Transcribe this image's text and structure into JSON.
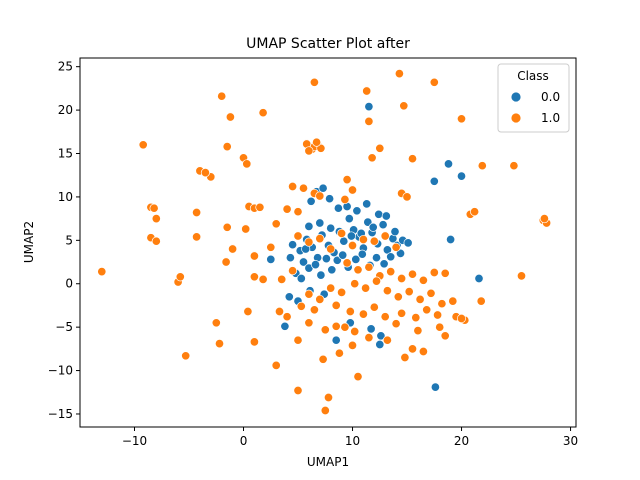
{
  "chart_data": {
    "type": "scatter",
    "title": "UMAP Scatter Plot after",
    "xlabel": "UMAP1",
    "ylabel": "UMAP2",
    "xlim": [
      -15,
      30.5
    ],
    "ylim": [
      -16.5,
      26
    ],
    "xticks": [
      -10,
      0,
      10,
      20,
      30
    ],
    "yticks": [
      -15,
      -10,
      -5,
      0,
      5,
      10,
      15,
      20,
      25
    ],
    "xtick_labels": [
      "−10",
      "0",
      "10",
      "20",
      "30"
    ],
    "ytick_labels": [
      "−15",
      "−10",
      "−5",
      "0",
      "5",
      "10",
      "15",
      "20",
      "25"
    ],
    "grid": false,
    "legend": {
      "title": "Class",
      "placement": "upper-right",
      "entries": [
        {
          "label": "0.0",
          "color": "#1f77b4"
        },
        {
          "label": "1.0",
          "color": "#ff7f0e"
        }
      ]
    },
    "series": [
      {
        "name": "0.0",
        "color": "#1f77b4",
        "points": [
          [
            4.5,
            4.5
          ],
          [
            5.2,
            3.8
          ],
          [
            5.8,
            5.1
          ],
          [
            6.3,
            4.2
          ],
          [
            6.8,
            3.0
          ],
          [
            7.2,
            5.6
          ],
          [
            7.8,
            4.4
          ],
          [
            8.3,
            3.6
          ],
          [
            8.8,
            6.0
          ],
          [
            9.2,
            4.9
          ],
          [
            9.7,
            7.5
          ],
          [
            10.1,
            6.2
          ],
          [
            10.6,
            5.4
          ],
          [
            11.0,
            4.1
          ],
          [
            11.4,
            7.1
          ],
          [
            11.8,
            5.9
          ],
          [
            12.3,
            4.6
          ],
          [
            12.8,
            6.8
          ],
          [
            13.2,
            3.9
          ],
          [
            13.7,
            5.2
          ],
          [
            14.1,
            4.4
          ],
          [
            14.6,
            5.0
          ],
          [
            15.1,
            4.7
          ],
          [
            5.5,
            2.5
          ],
          [
            6.0,
            1.8
          ],
          [
            6.6,
            2.2
          ],
          [
            7.1,
            1.0
          ],
          [
            7.6,
            2.9
          ],
          [
            8.1,
            1.6
          ],
          [
            8.6,
            2.7
          ],
          [
            9.1,
            3.3
          ],
          [
            9.6,
            1.9
          ],
          [
            10.3,
            2.8
          ],
          [
            10.9,
            3.4
          ],
          [
            11.6,
            2.1
          ],
          [
            12.2,
            3.0
          ],
          [
            12.9,
            2.3
          ],
          [
            13.5,
            3.1
          ],
          [
            4.8,
            1.2
          ],
          [
            5.3,
            0.6
          ],
          [
            6.2,
            9.5
          ],
          [
            6.7,
            10.6
          ],
          [
            7.3,
            11.0
          ],
          [
            7.9,
            9.8
          ],
          [
            8.7,
            8.7
          ],
          [
            9.5,
            8.9
          ],
          [
            10.4,
            8.4
          ],
          [
            11.3,
            9.2
          ],
          [
            12.4,
            8.0
          ],
          [
            13.1,
            7.8
          ],
          [
            4.2,
            -1.5
          ],
          [
            5.0,
            -2.0
          ],
          [
            6.1,
            -0.8
          ],
          [
            7.4,
            -1.2
          ],
          [
            9.8,
            -4.5
          ],
          [
            11.7,
            -5.2
          ],
          [
            12.6,
            -6.0
          ],
          [
            12.5,
            -7.0
          ],
          [
            8.5,
            -6.5
          ],
          [
            11.5,
            20.4
          ],
          [
            17.5,
            11.8
          ],
          [
            20.0,
            12.4
          ],
          [
            18.8,
            13.8
          ],
          [
            19.0,
            5.1
          ],
          [
            21.6,
            0.6
          ],
          [
            17.6,
            -11.9
          ],
          [
            3.8,
            -4.9
          ],
          [
            2.5,
            2.8
          ],
          [
            6.0,
            6.6
          ],
          [
            7.0,
            7.0
          ],
          [
            8.0,
            6.4
          ],
          [
            9.9,
            5.5
          ],
          [
            10.8,
            5.8
          ],
          [
            11.9,
            6.5
          ],
          [
            13.9,
            6.0
          ],
          [
            14.4,
            3.5
          ],
          [
            5.7,
            4.0
          ],
          [
            4.3,
            3.0
          ]
        ]
      },
      {
        "name": "1.0",
        "color": "#ff7f0e",
        "points": [
          [
            5.0,
            5.5
          ],
          [
            6.0,
            4.8
          ],
          [
            7.0,
            5.2
          ],
          [
            8.0,
            4.0
          ],
          [
            9.0,
            5.8
          ],
          [
            10.0,
            4.4
          ],
          [
            11.0,
            5.1
          ],
          [
            12.0,
            4.9
          ],
          [
            13.0,
            5.5
          ],
          [
            14.0,
            4.2
          ],
          [
            9.5,
            2.4
          ],
          [
            10.5,
            1.6
          ],
          [
            11.5,
            1.9
          ],
          [
            12.5,
            0.9
          ],
          [
            13.5,
            1.4
          ],
          [
            14.5,
            0.6
          ],
          [
            15.5,
            1.1
          ],
          [
            16.5,
            0.4
          ],
          [
            17.5,
            1.3
          ],
          [
            18.5,
            1.2
          ],
          [
            10.2,
            0.0
          ],
          [
            11.2,
            -0.5
          ],
          [
            12.2,
            0.3
          ],
          [
            13.2,
            -0.8
          ],
          [
            14.2,
            -1.5
          ],
          [
            15.2,
            -0.9
          ],
          [
            16.2,
            -1.8
          ],
          [
            17.2,
            -1.1
          ],
          [
            18.2,
            -2.3
          ],
          [
            19.2,
            -2.0
          ],
          [
            9.0,
            -1.0
          ],
          [
            8.0,
            -0.5
          ],
          [
            7.0,
            -1.8
          ],
          [
            6.0,
            -1.2
          ],
          [
            5.3,
            -2.6
          ],
          [
            6.5,
            -3.0
          ],
          [
            8.5,
            -2.5
          ],
          [
            9.8,
            -3.2
          ],
          [
            11.0,
            -3.5
          ],
          [
            12.0,
            -2.7
          ],
          [
            13.0,
            -3.8
          ],
          [
            14.5,
            -3.4
          ],
          [
            15.8,
            -3.9
          ],
          [
            16.8,
            -3.0
          ],
          [
            17.8,
            -3.6
          ],
          [
            19.5,
            -3.8
          ],
          [
            20.3,
            -4.2
          ],
          [
            18.0,
            -5.0
          ],
          [
            16.0,
            -5.4
          ],
          [
            14.0,
            -4.6
          ],
          [
            6.0,
            -4.5
          ],
          [
            7.5,
            -5.3
          ],
          [
            8.5,
            -4.9
          ],
          [
            9.3,
            -5.0
          ],
          [
            10.2,
            -5.5
          ],
          [
            11.5,
            -6.2
          ],
          [
            13.2,
            -6.5
          ],
          [
            5.0,
            -6.5
          ],
          [
            3.3,
            -3.2
          ],
          [
            4.0,
            -3.8
          ],
          [
            6.3,
            15.5
          ],
          [
            6.8,
            16.0
          ],
          [
            5.8,
            16.1
          ],
          [
            6.5,
            15.8
          ],
          [
            7.1,
            15.6
          ],
          [
            6.0,
            15.3
          ],
          [
            6.7,
            16.3
          ],
          [
            14.3,
            24.2
          ],
          [
            17.5,
            23.2
          ],
          [
            6.5,
            23.2
          ],
          [
            11.3,
            22.2
          ],
          [
            -2.0,
            21.6
          ],
          [
            1.8,
            19.7
          ],
          [
            11.5,
            18.7
          ],
          [
            14.7,
            20.5
          ],
          [
            20.0,
            19.0
          ],
          [
            -1.2,
            19.2
          ],
          [
            -9.2,
            16.0
          ],
          [
            -1.5,
            15.8
          ],
          [
            0.0,
            14.5
          ],
          [
            0.3,
            13.8
          ],
          [
            -3.0,
            12.3
          ],
          [
            -4.0,
            13.0
          ],
          [
            -3.5,
            12.8
          ],
          [
            11.8,
            14.5
          ],
          [
            15.5,
            14.4
          ],
          [
            9.5,
            12.0
          ],
          [
            12.5,
            15.6
          ],
          [
            4.5,
            11.2
          ],
          [
            5.5,
            11.0
          ],
          [
            6.5,
            10.4
          ],
          [
            7.0,
            10.1
          ],
          [
            9.3,
            9.7
          ],
          [
            14.5,
            10.4
          ],
          [
            15.0,
            10.0
          ],
          [
            10.0,
            10.8
          ],
          [
            20.8,
            8.0
          ],
          [
            21.2,
            8.3
          ],
          [
            -8.5,
            8.8
          ],
          [
            -8.2,
            8.7
          ],
          [
            -8.0,
            7.5
          ],
          [
            -8.5,
            5.3
          ],
          [
            -8.0,
            4.9
          ],
          [
            -4.3,
            8.2
          ],
          [
            -4.3,
            5.4
          ],
          [
            -1.5,
            6.5
          ],
          [
            0.5,
            8.9
          ],
          [
            1.0,
            8.7
          ],
          [
            1.5,
            8.8
          ],
          [
            0.2,
            6.3
          ],
          [
            -1.0,
            4.0
          ],
          [
            -1.6,
            2.5
          ],
          [
            1.0,
            3.2
          ],
          [
            2.5,
            4.2
          ],
          [
            3.0,
            6.9
          ],
          [
            4.0,
            8.6
          ],
          [
            5.0,
            8.3
          ],
          [
            27.5,
            7.3
          ],
          [
            27.8,
            7.0
          ],
          [
            27.6,
            7.5
          ],
          [
            24.8,
            13.6
          ],
          [
            21.9,
            13.6
          ],
          [
            -13.0,
            1.4
          ],
          [
            -6.0,
            0.2
          ],
          [
            -5.8,
            0.8
          ],
          [
            1.0,
            0.8
          ],
          [
            1.8,
            0.5
          ],
          [
            0.4,
            -3.2
          ],
          [
            -2.5,
            -4.5
          ],
          [
            -2.2,
            -6.9
          ],
          [
            1.0,
            -6.7
          ],
          [
            -5.3,
            -8.3
          ],
          [
            3.0,
            -9.4
          ],
          [
            5.0,
            -12.3
          ],
          [
            7.8,
            -13.1
          ],
          [
            7.3,
            -8.7
          ],
          [
            10.0,
            -7.1
          ],
          [
            14.8,
            -8.5
          ],
          [
            16.5,
            -7.8
          ],
          [
            18.5,
            -6.0
          ],
          [
            7.5,
            -14.6
          ],
          [
            10.5,
            -10.7
          ],
          [
            21.8,
            -2.0
          ],
          [
            25.5,
            0.9
          ],
          [
            20.0,
            -4.0
          ],
          [
            15.5,
            -7.5
          ],
          [
            3.5,
            0.5
          ],
          [
            4.5,
            1.5
          ],
          [
            8.8,
            -8.0
          ]
        ]
      }
    ]
  }
}
